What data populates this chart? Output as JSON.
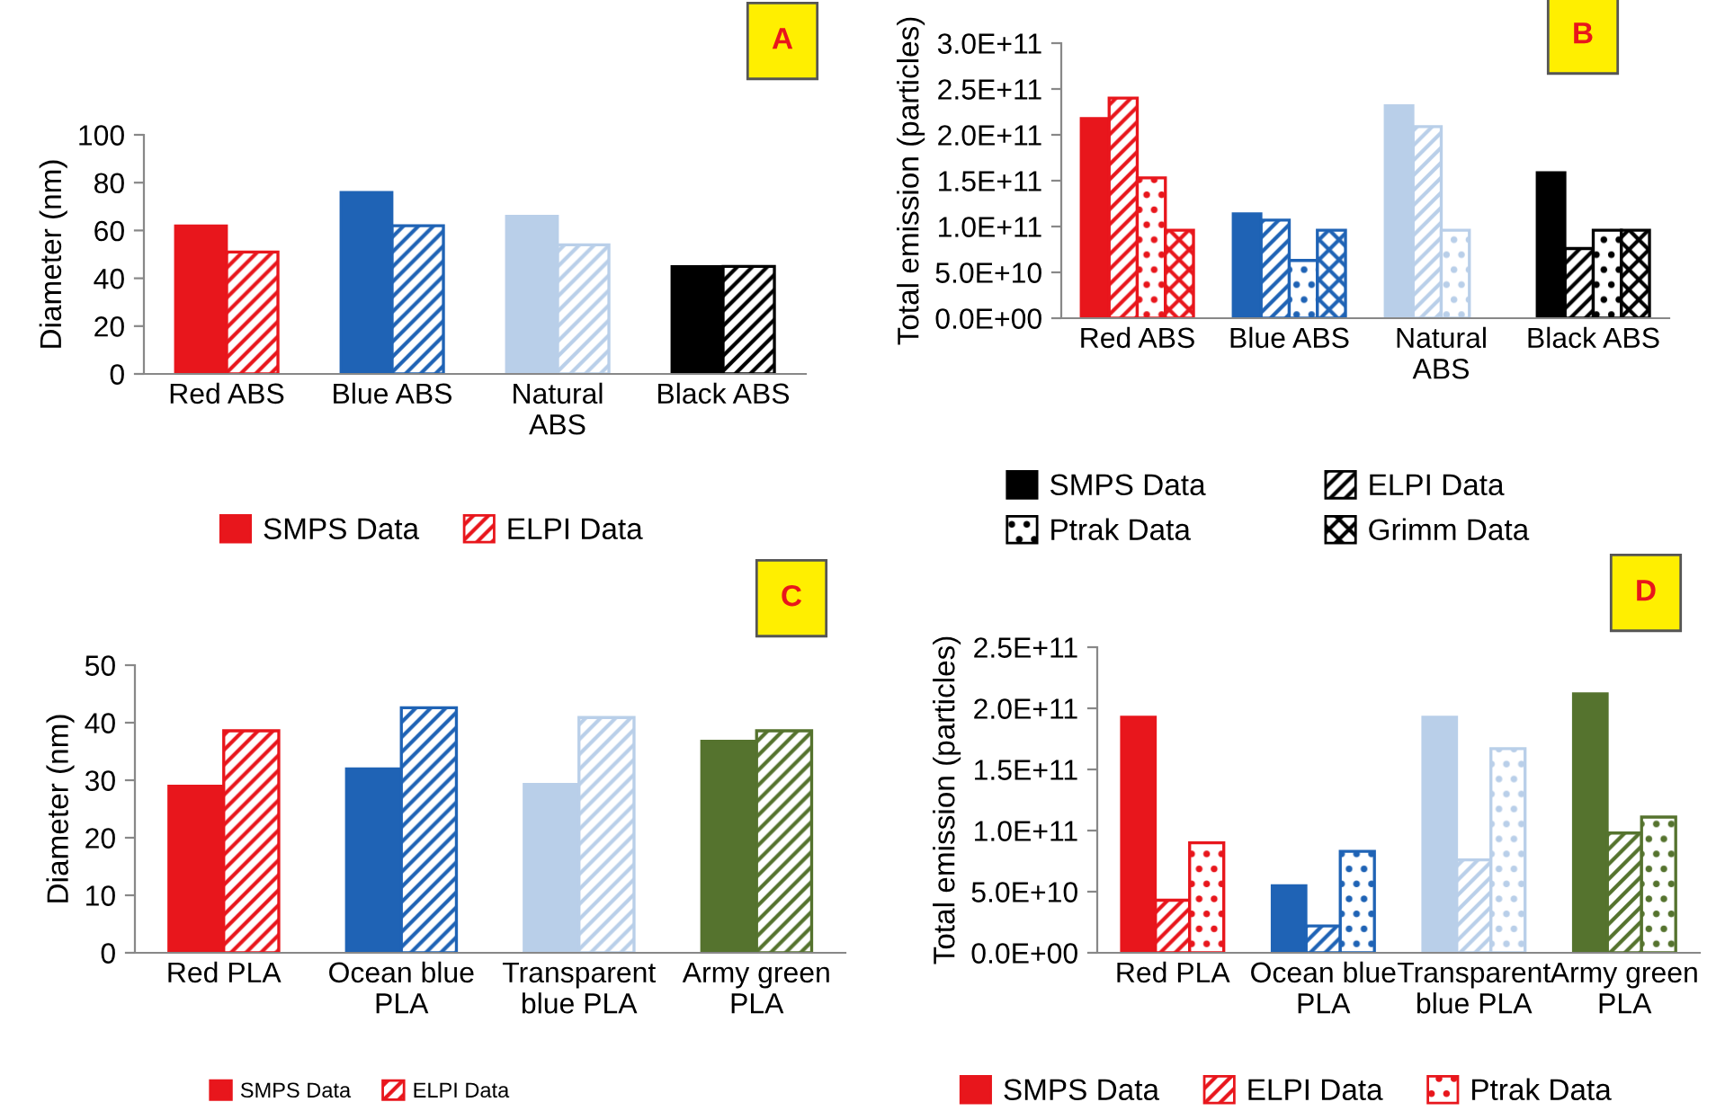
{
  "chart_data": [
    {
      "type": "bar",
      "annotations": [
        "A"
      ],
      "ylabel": "Diameter (nm)",
      "categories": [
        "Red ABS",
        "Blue ABS",
        "Natural\nABS",
        "Black ABS"
      ],
      "ylim": [
        0,
        100
      ],
      "yticks": [
        0,
        20,
        40,
        60,
        80,
        100
      ],
      "legend": "bottom",
      "grid": false,
      "series": [
        {
          "name": "SMPS Data",
          "color": "#e8161c",
          "colors": [
            "#e8161c",
            "#1f63b5",
            "#b9cfe9",
            "#000000"
          ],
          "values": [
            62,
            76,
            66,
            45
          ]
        },
        {
          "name": "ELPI Data",
          "color": "#e8161c",
          "colors": [
            "#e8161c",
            "#1f63b5",
            "#b9cfe9",
            "#000000"
          ],
          "values": [
            51,
            62,
            54,
            45
          ]
        }
      ]
    },
    {
      "type": "bar",
      "annotations": [
        "B"
      ],
      "ylabel": "Total emission (particles)",
      "categories": [
        "Red ABS",
        "Blue ABS",
        "Natural\nABS",
        "Black ABS"
      ],
      "ylim": [
        0,
        300000000000
      ],
      "yticks": [
        {
          "value": 0,
          "label": "0.0E+00"
        },
        {
          "value": 50000000000,
          "label": "5.0E+10"
        },
        {
          "value": 100000000000,
          "label": "1.0E+11"
        },
        {
          "value": 150000000000,
          "label": "1.5E+11"
        },
        {
          "value": 200000000000,
          "label": "2.0E+11"
        },
        {
          "value": 250000000000,
          "label": "2.5E+11"
        },
        {
          "value": 300000000000,
          "label": "3.0E+11"
        }
      ],
      "legend": "bottom",
      "grid": false,
      "series": [
        {
          "name": "SMPS Data",
          "color": "#000000",
          "colors": [
            "#e8161c",
            "#1f63b5",
            "#b9cfe9",
            "#000000"
          ],
          "values": [
            218000000000,
            114000000000,
            232000000000,
            159000000000
          ]
        },
        {
          "name": "ELPI Data",
          "color": "#000000",
          "colors": [
            "#e8161c",
            "#1f63b5",
            "#b9cfe9",
            "#000000"
          ],
          "values": [
            240000000000,
            107000000000,
            209000000000,
            76000000000
          ]
        },
        {
          "name": "Ptrak Data",
          "color": "#000000",
          "colors": [
            "#e8161c",
            "#1f63b5",
            "#b9cfe9",
            "#000000"
          ],
          "values": [
            153000000000,
            63000000000,
            96000000000,
            96000000000
          ]
        },
        {
          "name": "Grimm Data",
          "color": "#000000",
          "colors": [
            "#e8161c",
            "#1f63b5",
            "#b9cfe9",
            "#000000"
          ],
          "values": [
            96000000000,
            96000000000,
            null,
            96000000000
          ]
        }
      ]
    },
    {
      "type": "bar",
      "annotations": [
        "C"
      ],
      "ylabel": "Diameter (nm)",
      "categories": [
        "Red PLA",
        "Ocean blue\nPLA",
        "Transparent\nblue PLA",
        "Army green\nPLA"
      ],
      "ylim": [
        0,
        50
      ],
      "yticks": [
        0,
        10,
        20,
        30,
        40,
        50
      ],
      "legend": "bottom",
      "grid": false,
      "series": [
        {
          "name": "SMPS Data",
          "color": "#e8161c",
          "colors": [
            "#e8161c",
            "#1f63b5",
            "#b9cfe9",
            "#55732e"
          ],
          "values": [
            29,
            32,
            29.3,
            36.8
          ]
        },
        {
          "name": "ELPI Data",
          "color": "#e8161c",
          "colors": [
            "#e8161c",
            "#1f63b5",
            "#b9cfe9",
            "#55732e"
          ],
          "values": [
            38.6,
            42.6,
            40.9,
            38.6
          ]
        }
      ]
    },
    {
      "type": "bar",
      "annotations": [
        "D"
      ],
      "ylabel": "Total emission (particles)",
      "categories": [
        "Red PLA",
        "Ocean blue\nPLA",
        "Transparent\nblue PLA",
        "Army green\nPLA"
      ],
      "ylim": [
        0,
        250000000000
      ],
      "yticks": [
        {
          "value": 0,
          "label": "0.0E+00"
        },
        {
          "value": 50000000000,
          "label": "5.0E+10"
        },
        {
          "value": 100000000000,
          "label": "1.0E+11"
        },
        {
          "value": 150000000000,
          "label": "1.5E+11"
        },
        {
          "value": 200000000000,
          "label": "2.0E+11"
        },
        {
          "value": 250000000000,
          "label": "2.5E+11"
        }
      ],
      "legend": "bottom",
      "grid": false,
      "series": [
        {
          "name": "SMPS Data",
          "color": "#e8161c",
          "colors": [
            "#e8161c",
            "#1f63b5",
            "#b9cfe9",
            "#55732e"
          ],
          "values": [
            193000000000,
            55000000000,
            193000000000,
            212000000000
          ]
        },
        {
          "name": "ELPI Data",
          "color": "#e8161c",
          "colors": [
            "#e8161c",
            "#1f63b5",
            "#b9cfe9",
            "#55732e"
          ],
          "values": [
            43000000000,
            22000000000,
            76000000000,
            98000000000
          ]
        },
        {
          "name": "Ptrak Data",
          "color": "#e8161c",
          "colors": [
            "#e8161c",
            "#1f63b5",
            "#b9cfe9",
            "#55732e"
          ],
          "values": [
            90000000000,
            83000000000,
            167000000000,
            111000000000
          ]
        }
      ]
    }
  ]
}
